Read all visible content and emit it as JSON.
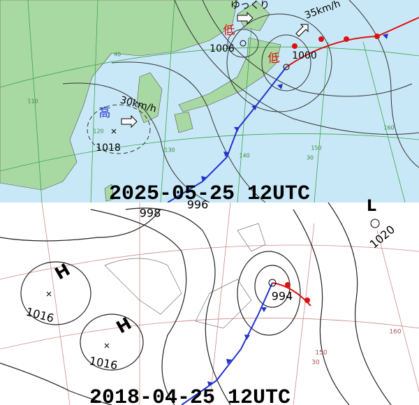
{
  "top_map": {
    "caption": "2025-05-25 12UTC",
    "labels": {
      "slow": "ゆっくり",
      "speed_east": "35km/h",
      "low_west": "低",
      "low_west_pressure": "1006",
      "low_east": "低",
      "low_east_pressure": "1000",
      "high": "高",
      "speed_high": "30km/h",
      "high_pressure": "1018"
    },
    "grid_labels": [
      "110",
      "40",
      "120",
      "130",
      "140",
      "150",
      "30",
      "160"
    ]
  },
  "bottom_map": {
    "caption": "2018-04-25 12UTC",
    "labels": {
      "isobar_998": "998",
      "isobar_996": "996",
      "low_top": "L",
      "high_east_pressure": "1020",
      "high_west": "H",
      "high_west_pressure": "1016",
      "high_south": "H",
      "high_south_pressure": "1016",
      "low_pressure": "994"
    },
    "grid_labels": [
      "150",
      "30",
      "160"
    ]
  }
}
